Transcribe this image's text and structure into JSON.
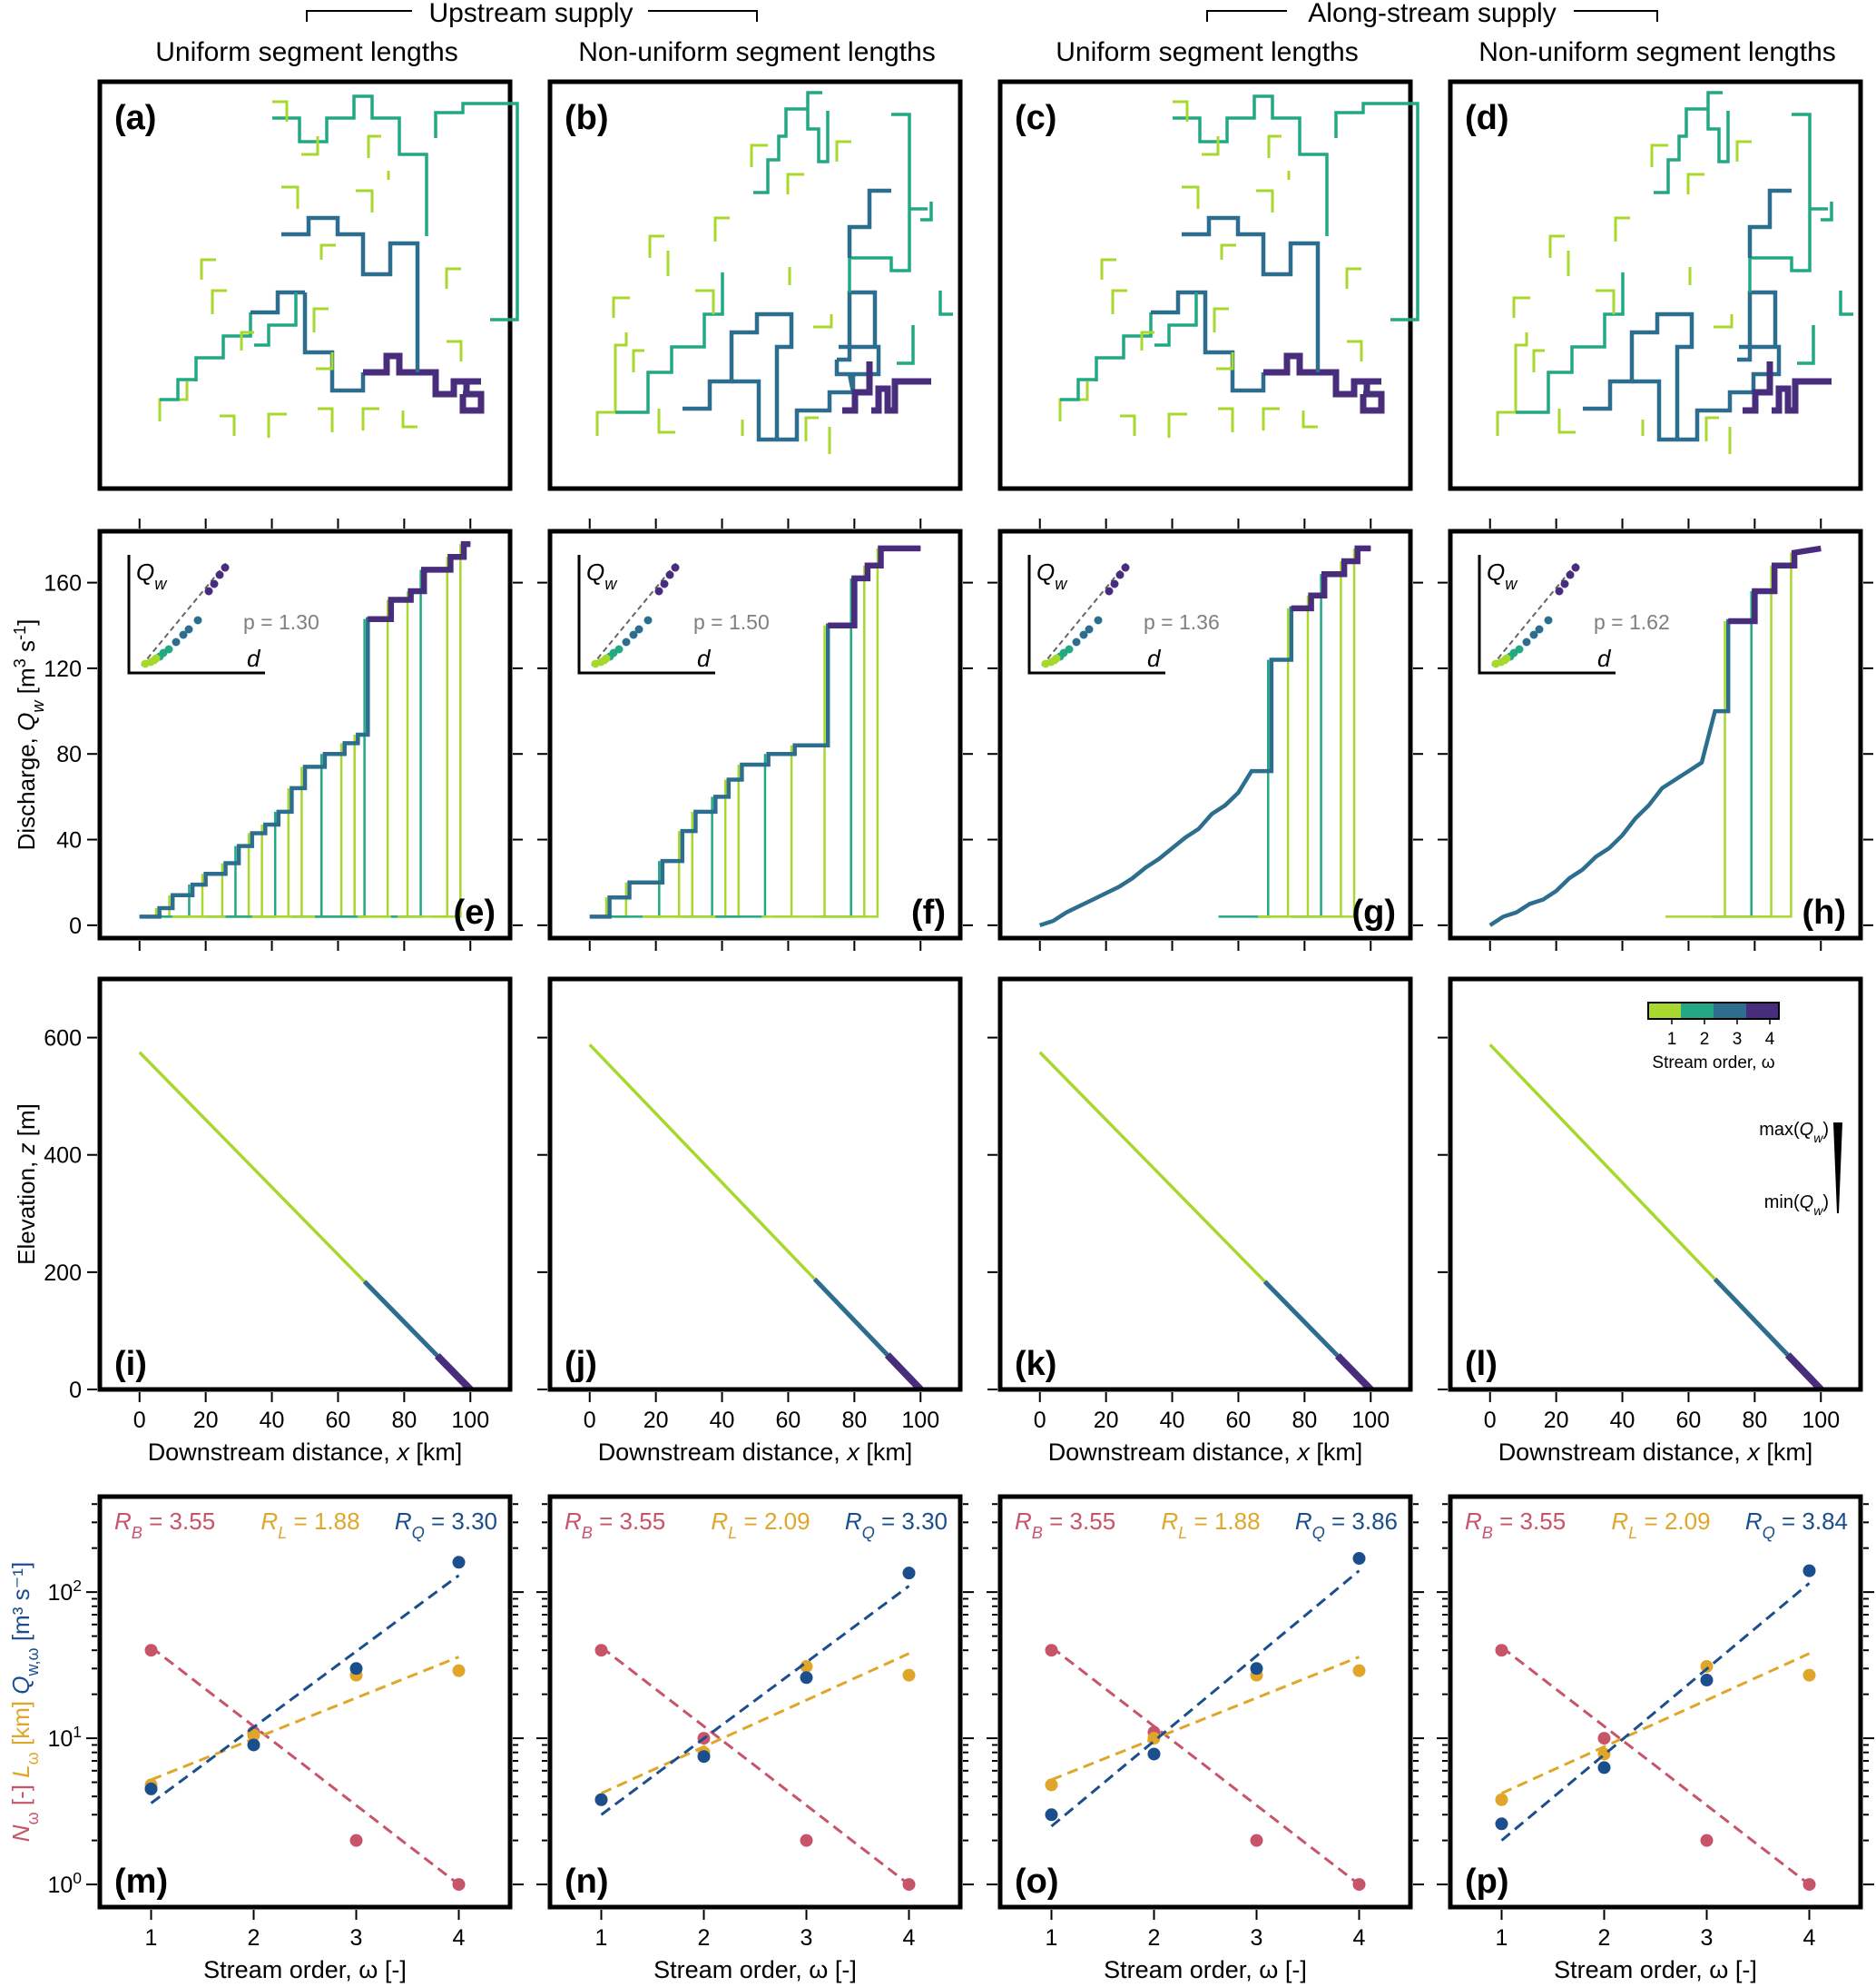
{
  "header": {
    "groups": [
      {
        "label": "Upstream supply"
      },
      {
        "label": "Along-stream supply"
      }
    ],
    "columns": [
      {
        "label": "Uniform segment lengths"
      },
      {
        "label": "Non-uniform segment lengths"
      },
      {
        "label": "Uniform segment lengths"
      },
      {
        "label": "Non-uniform segment lengths"
      }
    ]
  },
  "colors": {
    "order1": "#a8d82e",
    "order2": "#23a884",
    "order3": "#2d6e8e",
    "order4": "#472d7b",
    "RB": "#c8546a",
    "RL": "#e0a62a",
    "RQ": "#1a4e8c",
    "gray": "#7f7f7f"
  },
  "panel_labels": {
    "network": [
      "(a)",
      "(b)",
      "(c)",
      "(d)"
    ],
    "discharge": [
      "(e)",
      "(f)",
      "(g)",
      "(h)"
    ],
    "elevation": [
      "(i)",
      "(j)",
      "(k)",
      "(l)"
    ],
    "horton": [
      "(m)",
      "(n)",
      "(o)",
      "(p)"
    ]
  },
  "legend": {
    "colorbar_ticks": [
      "1",
      "2",
      "3",
      "4"
    ],
    "colorbar_title": "Stream order, ω",
    "width_max": "max(Q_w)",
    "width_min": "min(Q_w)"
  },
  "chart_data": [
    {
      "type": "line",
      "panel": "discharge",
      "ylabel": "Discharge, Q_w [m³ s⁻¹]",
      "ylim": [
        -6,
        184
      ],
      "xlim": [
        -12,
        112
      ],
      "yticks": [
        0,
        40,
        80,
        120,
        160
      ],
      "xticks": [
        0,
        20,
        40,
        60,
        80,
        100
      ],
      "inset": {
        "ylabel": "Q_w",
        "xlabel": "d",
        "p_values": [
          "p = 1.30",
          "p = 1.50",
          "p = 1.36",
          "p = 1.62"
        ]
      },
      "mainstem_values": [
        [
          [
            0,
            4
          ],
          [
            6,
            4
          ],
          [
            6,
            8
          ],
          [
            10,
            8
          ],
          [
            10,
            14
          ],
          [
            16,
            14
          ],
          [
            16,
            19
          ],
          [
            20,
            19
          ],
          [
            20,
            24
          ],
          [
            26,
            24
          ],
          [
            26,
            29
          ],
          [
            30,
            29
          ],
          [
            30,
            37
          ],
          [
            34,
            37
          ],
          [
            34,
            43
          ],
          [
            38,
            43
          ],
          [
            38,
            47
          ],
          [
            42,
            47
          ],
          [
            42,
            53
          ],
          [
            46,
            53
          ],
          [
            46,
            64
          ],
          [
            50,
            64
          ],
          [
            50,
            74
          ],
          [
            56,
            74
          ],
          [
            56,
            80
          ],
          [
            62,
            80
          ],
          [
            62,
            85
          ],
          [
            66,
            85
          ],
          [
            66,
            89
          ],
          [
            69,
            89
          ],
          [
            69,
            143
          ],
          [
            76,
            143
          ],
          [
            76,
            152
          ],
          [
            82,
            152
          ],
          [
            82,
            156
          ],
          [
            86,
            156
          ],
          [
            86,
            166
          ],
          [
            94,
            166
          ],
          [
            94,
            172
          ],
          [
            98,
            172
          ],
          [
            98,
            178
          ],
          [
            100,
            178
          ]
        ],
        [
          [
            0,
            4
          ],
          [
            6,
            4
          ],
          [
            6,
            13
          ],
          [
            12,
            13
          ],
          [
            12,
            20
          ],
          [
            22,
            20
          ],
          [
            22,
            30
          ],
          [
            28,
            30
          ],
          [
            28,
            44
          ],
          [
            32,
            44
          ],
          [
            32,
            53
          ],
          [
            38,
            53
          ],
          [
            38,
            60
          ],
          [
            42,
            60
          ],
          [
            42,
            68
          ],
          [
            46,
            68
          ],
          [
            46,
            75
          ],
          [
            54,
            75
          ],
          [
            54,
            80
          ],
          [
            62,
            80
          ],
          [
            62,
            84
          ],
          [
            72,
            84
          ],
          [
            72,
            140
          ],
          [
            80,
            140
          ],
          [
            80,
            162
          ],
          [
            84,
            162
          ],
          [
            84,
            168
          ],
          [
            88,
            168
          ],
          [
            88,
            176
          ],
          [
            100,
            176
          ]
        ],
        [
          [
            0,
            0
          ],
          [
            4,
            2
          ],
          [
            8,
            6
          ],
          [
            12,
            9
          ],
          [
            16,
            12
          ],
          [
            20,
            15
          ],
          [
            24,
            18
          ],
          [
            28,
            22
          ],
          [
            32,
            27
          ],
          [
            36,
            31
          ],
          [
            40,
            36
          ],
          [
            44,
            41
          ],
          [
            48,
            45
          ],
          [
            52,
            52
          ],
          [
            56,
            56
          ],
          [
            60,
            62
          ],
          [
            64,
            72
          ],
          [
            70,
            72
          ],
          [
            70,
            124
          ],
          [
            76,
            124
          ],
          [
            76,
            148
          ],
          [
            82,
            148
          ],
          [
            82,
            154
          ],
          [
            86,
            154
          ],
          [
            86,
            164
          ],
          [
            92,
            164
          ],
          [
            92,
            170
          ],
          [
            96,
            170
          ],
          [
            96,
            176
          ],
          [
            100,
            176
          ]
        ],
        [
          [
            0,
            0
          ],
          [
            4,
            4
          ],
          [
            8,
            6
          ],
          [
            12,
            10
          ],
          [
            16,
            12
          ],
          [
            20,
            16
          ],
          [
            24,
            22
          ],
          [
            28,
            26
          ],
          [
            32,
            32
          ],
          [
            36,
            36
          ],
          [
            40,
            42
          ],
          [
            44,
            50
          ],
          [
            48,
            56
          ],
          [
            52,
            64
          ],
          [
            56,
            68
          ],
          [
            60,
            72
          ],
          [
            64,
            76
          ],
          [
            68,
            100
          ],
          [
            72,
            100
          ],
          [
            72,
            142
          ],
          [
            80,
            142
          ],
          [
            80,
            156
          ],
          [
            86,
            156
          ],
          [
            86,
            168
          ],
          [
            92,
            168
          ],
          [
            92,
            174
          ],
          [
            100,
            176
          ]
        ]
      ]
    },
    {
      "type": "line",
      "panel": "elevation",
      "xlabel": "Downstream distance, x [km]",
      "ylabel": "Elevation, z [m]",
      "ylim": [
        0,
        700
      ],
      "xlim": [
        -12,
        112
      ],
      "yticks": [
        0,
        200,
        400,
        600
      ],
      "xticks": [
        0,
        20,
        40,
        60,
        80,
        100
      ],
      "series": [
        {
          "x": [
            0,
            100
          ],
          "y": [
            575,
            0
          ]
        },
        {
          "x": [
            0,
            100
          ],
          "y": [
            588,
            0
          ]
        },
        {
          "x": [
            0,
            100
          ],
          "y": [
            575,
            0
          ]
        },
        {
          "x": [
            0,
            100
          ],
          "y": [
            588,
            0
          ]
        }
      ]
    },
    {
      "type": "scatter",
      "panel": "horton",
      "xlabel": "Stream order, ω [-]",
      "ylabel_parts": [
        "N_ω [-]",
        "L_ω [km]",
        "Q_w,ω [m³ s⁻¹]"
      ],
      "yscale": "log",
      "ylim": [
        0.7,
        450
      ],
      "xlim": [
        0.5,
        4.5
      ],
      "xticks": [
        1,
        2,
        3,
        4
      ],
      "yticks": [
        "10^0",
        "10^1",
        "10^2"
      ],
      "panels": [
        {
          "RB_label": "R_B = 3.55",
          "RL_label": "R_L = 1.88",
          "RQ_label": "R_Q = 3.30",
          "N": [
            40,
            11,
            2,
            1
          ],
          "L": [
            4.8,
            10.5,
            27,
            29
          ],
          "Q": [
            4.5,
            9,
            30,
            160
          ],
          "N_fit": [
            42,
            1.0
          ],
          "L_fit": [
            5.2,
            36
          ],
          "Q_fit": [
            3.6,
            130
          ]
        },
        {
          "RB_label": "R_B = 3.55",
          "RL_label": "R_L = 2.09",
          "RQ_label": "R_Q = 3.30",
          "N": [
            40,
            10,
            2,
            1
          ],
          "L": [
            3.8,
            8,
            31,
            27
          ],
          "Q": [
            3.8,
            7.5,
            26,
            135
          ],
          "N_fit": [
            42,
            1.0
          ],
          "L_fit": [
            4.2,
            38
          ],
          "Q_fit": [
            3.0,
            110
          ]
        },
        {
          "RB_label": "R_B = 3.55",
          "RL_label": "R_L = 1.88",
          "RQ_label": "R_Q = 3.86",
          "N": [
            40,
            11,
            2,
            1
          ],
          "L": [
            4.8,
            10,
            27,
            29
          ],
          "Q": [
            3.0,
            7.8,
            30,
            170
          ],
          "N_fit": [
            42,
            1.0
          ],
          "L_fit": [
            5.2,
            36
          ],
          "Q_fit": [
            2.5,
            140
          ]
        },
        {
          "RB_label": "R_B = 3.55",
          "RL_label": "R_L = 2.09",
          "RQ_label": "R_Q = 3.84",
          "N": [
            40,
            10,
            2,
            1
          ],
          "L": [
            3.8,
            7.8,
            31,
            27
          ],
          "Q": [
            2.6,
            6.3,
            25,
            140
          ],
          "N_fit": [
            42,
            1.0
          ],
          "L_fit": [
            4.2,
            38
          ],
          "Q_fit": [
            2.0,
            115
          ]
        }
      ]
    }
  ]
}
